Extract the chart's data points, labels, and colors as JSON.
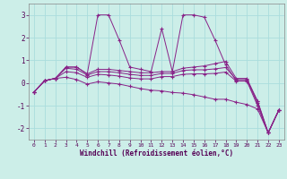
{
  "xlabel": "Windchill (Refroidissement éolien,°C)",
  "bg_color": "#cceee8",
  "line_color": "#882288",
  "grid_color": "#aadddd",
  "hours": [
    0,
    1,
    2,
    3,
    4,
    5,
    6,
    7,
    8,
    9,
    10,
    11,
    12,
    13,
    14,
    15,
    16,
    17,
    18,
    19,
    20,
    21,
    22,
    23
  ],
  "temp": [
    -0.4,
    0.1,
    0.2,
    0.7,
    0.7,
    0.4,
    3.0,
    3.0,
    1.9,
    0.7,
    0.6,
    0.5,
    2.4,
    0.5,
    3.0,
    3.0,
    2.9,
    1.9,
    0.8,
    0.1,
    0.1,
    -0.8,
    -2.2,
    -1.2
  ],
  "wc1": [
    -0.4,
    0.1,
    0.2,
    0.7,
    0.7,
    0.4,
    0.6,
    0.6,
    0.55,
    0.5,
    0.45,
    0.45,
    0.5,
    0.5,
    0.65,
    0.7,
    0.75,
    0.85,
    0.95,
    0.2,
    0.2,
    -0.8,
    -2.2,
    -1.2
  ],
  "wc2": [
    -0.4,
    0.1,
    0.2,
    0.65,
    0.6,
    0.35,
    0.5,
    0.5,
    0.45,
    0.38,
    0.33,
    0.33,
    0.42,
    0.42,
    0.55,
    0.58,
    0.58,
    0.62,
    0.68,
    0.15,
    0.15,
    -0.9,
    -2.2,
    -1.2
  ],
  "wc3": [
    -0.4,
    0.1,
    0.2,
    0.5,
    0.45,
    0.25,
    0.38,
    0.35,
    0.3,
    0.22,
    0.18,
    0.18,
    0.28,
    0.28,
    0.38,
    0.4,
    0.4,
    0.42,
    0.48,
    0.08,
    0.08,
    -1.0,
    -2.2,
    -1.2
  ],
  "wc4": [
    -0.4,
    0.1,
    0.2,
    0.25,
    0.15,
    -0.05,
    0.05,
    0.0,
    -0.05,
    -0.15,
    -0.25,
    -0.32,
    -0.35,
    -0.42,
    -0.45,
    -0.52,
    -0.62,
    -0.72,
    -0.72,
    -0.85,
    -0.95,
    -1.15,
    -2.2,
    -1.2
  ],
  "ylim": [
    -2.5,
    3.5
  ],
  "yticks": [
    -2,
    -1,
    0,
    1,
    2,
    3
  ],
  "xticks": [
    0,
    1,
    2,
    3,
    4,
    5,
    6,
    7,
    8,
    9,
    10,
    11,
    12,
    13,
    14,
    15,
    16,
    17,
    18,
    19,
    20,
    21,
    22,
    23
  ]
}
